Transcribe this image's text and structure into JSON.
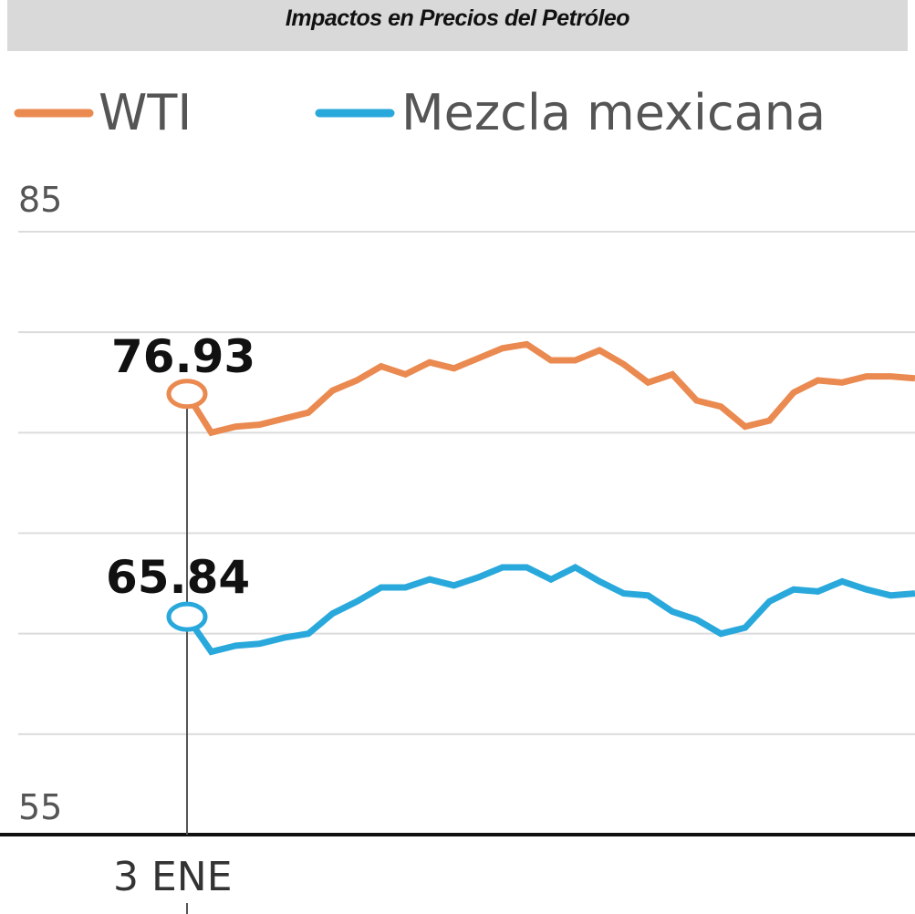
{
  "header": {
    "title": "Impactos en Precios del Petróleo"
  },
  "chart_data": {
    "type": "line",
    "title": "Impactos en Precios del Petróleo",
    "xlabel": "",
    "ylabel": "",
    "ylim": [
      55,
      85
    ],
    "y_ticks": [
      55,
      85
    ],
    "x_tick_label": "3 ENE",
    "grid": true,
    "legend_position": "top",
    "colors": {
      "wti": "#ea8a50",
      "mezcla": "#29a8dc",
      "axis": "#111111",
      "grid": "#dcdcdc"
    },
    "annotations": [
      {
        "label": "76.93",
        "series": "WTI"
      },
      {
        "label": "65.84",
        "series": "Mezcla mexicana"
      }
    ],
    "series": [
      {
        "name": "WTI",
        "values": [
          76.93,
          75.0,
          75.3,
          75.4,
          75.7,
          76.0,
          77.1,
          77.6,
          78.3,
          77.9,
          78.5,
          78.2,
          78.7,
          79.2,
          79.4,
          78.6,
          78.6,
          79.1,
          78.4,
          77.5,
          77.9,
          76.6,
          76.3,
          75.3,
          75.6,
          77.0,
          77.6,
          77.5,
          77.8,
          77.8,
          77.7
        ],
        "color": "#ea8a50"
      },
      {
        "name": "Mezcla mexicana",
        "values": [
          65.84,
          64.1,
          64.4,
          64.5,
          64.8,
          65.0,
          66.0,
          66.6,
          67.3,
          67.3,
          67.7,
          67.4,
          67.8,
          68.3,
          68.3,
          67.7,
          68.3,
          67.6,
          67.0,
          66.9,
          66.1,
          65.7,
          65.0,
          65.3,
          66.6,
          67.2,
          67.1,
          67.6,
          67.2,
          66.9,
          67.0
        ],
        "color": "#29a8dc"
      }
    ]
  }
}
